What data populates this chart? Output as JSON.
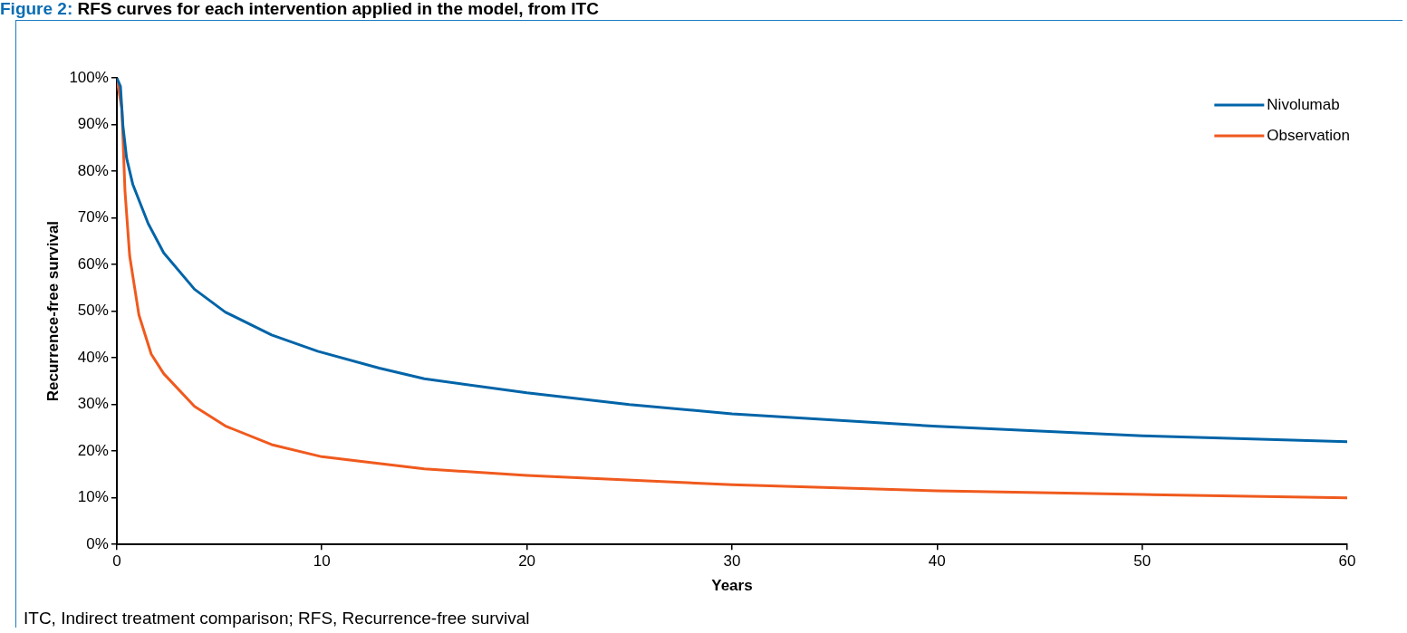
{
  "chart_data": {
    "type": "line",
    "title": "Figure 2: RFS curves for each intervention applied in the model, from ITC",
    "xlabel": "Years",
    "ylabel": "Recurrence-free survival",
    "xlim": [
      0,
      60
    ],
    "xticks": [
      0,
      10,
      20,
      30,
      40,
      50,
      60
    ],
    "ylim": [
      0,
      100
    ],
    "yticks": [
      {
        "value": 0,
        "label": "0%"
      },
      {
        "value": 10,
        "label": "10%"
      },
      {
        "value": 20,
        "label": "20%"
      },
      {
        "value": 30,
        "label": "30%"
      },
      {
        "value": 40,
        "label": "40%"
      },
      {
        "value": 50,
        "label": "50%"
      },
      {
        "value": 60,
        "label": "60%"
      },
      {
        "value": 70,
        "label": "70%"
      },
      {
        "value": 80,
        "label": "80%"
      },
      {
        "value": 90,
        "label": "90%"
      },
      {
        "value": 100,
        "label": "100%"
      }
    ],
    "legend": "top right",
    "marker": "none",
    "line_style": "solid",
    "series": [
      {
        "name": "Nivolumab",
        "color": "#0064a8",
        "x": [
          0,
          0.18,
          0.3,
          0.48,
          0.78,
          1.53,
          2.29,
          3.79,
          5.29,
          7.55,
          9.8,
          12.8,
          15,
          20,
          25,
          30,
          40,
          50,
          60
        ],
        "values": [
          100,
          98.2,
          89.8,
          82.8,
          77.2,
          68.8,
          62.5,
          54.7,
          49.8,
          44.9,
          41.4,
          37.8,
          35.5,
          32.5,
          30,
          28,
          25.3,
          23.3,
          22
        ]
      },
      {
        "name": "Observation",
        "color": "#f05a1e",
        "x": [
          0,
          0.25,
          0.4,
          0.63,
          1.08,
          1.68,
          2.29,
          3.79,
          5.29,
          7.55,
          10,
          15,
          20,
          30,
          40,
          50,
          60
        ],
        "values": [
          100,
          93.3,
          75.8,
          61.8,
          49.2,
          40.8,
          36.6,
          29.6,
          25.4,
          21.4,
          18.8,
          16.2,
          14.8,
          12.8,
          11.5,
          10.7,
          10
        ]
      }
    ],
    "annotations": [
      "ITC, Indirect treatment comparison; RFS, Recurrence-free survival"
    ]
  }
}
